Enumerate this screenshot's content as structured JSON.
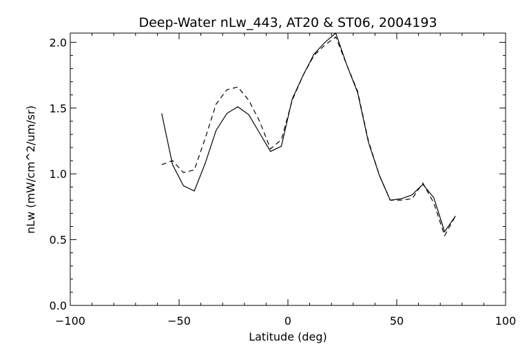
{
  "chart_data": {
    "type": "line",
    "title": "Deep-Water nLw_443, AT20 & ST06, 2004193",
    "xlabel": "Latitude (deg)",
    "ylabel": "nLw (mW/cm^2/um/sr)",
    "xlim": [
      -100,
      100
    ],
    "ylim": [
      0.0,
      2.07
    ],
    "xticks": [
      -100,
      -50,
      0,
      50,
      100
    ],
    "xtick_labels": [
      "−100",
      "−50",
      "0",
      "50",
      "100"
    ],
    "yticks": [
      0.0,
      0.5,
      1.0,
      1.5,
      2.0
    ],
    "ytick_labels": [
      "0.0",
      "0.5",
      "1.0",
      "1.5",
      "2.0"
    ],
    "grid": false,
    "series": [
      {
        "style": "solid",
        "x": [
          -58,
          -53,
          -48,
          -43,
          -38,
          -33,
          -28,
          -23,
          -18,
          -13,
          -8,
          -3,
          2,
          7,
          12,
          17,
          22,
          27,
          32,
          37,
          42,
          47,
          52,
          57,
          62,
          67,
          72,
          77
        ],
        "y": [
          1.46,
          1.07,
          0.91,
          0.87,
          1.08,
          1.33,
          1.46,
          1.51,
          1.45,
          1.31,
          1.17,
          1.21,
          1.57,
          1.75,
          1.91,
          2.0,
          2.07,
          1.83,
          1.62,
          1.24,
          0.99,
          0.8,
          0.81,
          0.84,
          0.92,
          0.82,
          0.56,
          0.68
        ]
      },
      {
        "style": "dashed",
        "x": [
          -58,
          -53,
          -48,
          -43,
          -38,
          -33,
          -28,
          -23,
          -18,
          -13,
          -8,
          -3,
          2,
          7,
          12,
          17,
          22,
          27,
          32,
          37,
          42,
          47,
          52,
          57,
          62,
          67,
          72,
          77
        ],
        "y": [
          1.07,
          1.1,
          1.01,
          1.03,
          1.27,
          1.53,
          1.64,
          1.66,
          1.56,
          1.4,
          1.19,
          1.26,
          1.56,
          1.75,
          1.9,
          1.98,
          2.04,
          1.83,
          1.63,
          1.25,
          0.99,
          0.8,
          0.8,
          0.81,
          0.93,
          0.78,
          0.53,
          0.68
        ]
      }
    ]
  }
}
